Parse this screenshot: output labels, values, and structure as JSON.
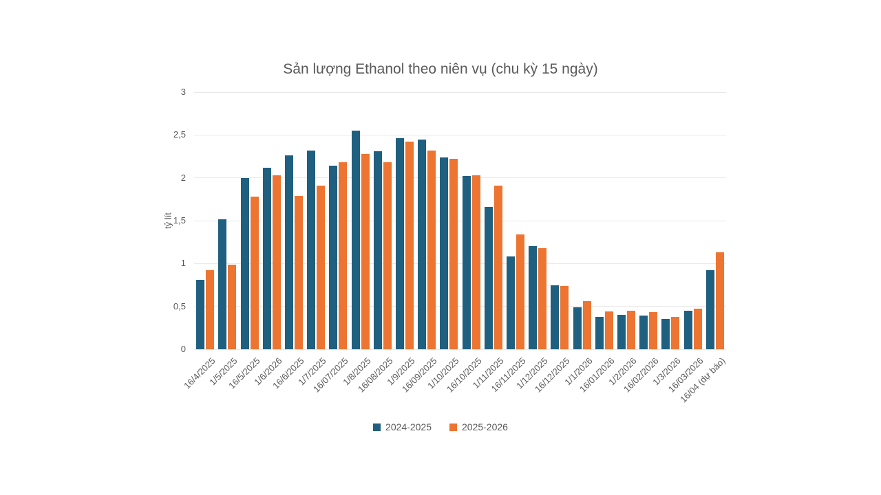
{
  "page": {
    "background": "#ffffff"
  },
  "chart_data": {
    "type": "bar",
    "title": "Sản lượng Ethanol theo niên vụ (chu kỳ 15 ngày)",
    "xlabel": "",
    "ylabel": "tỷ lít",
    "ylim": [
      0,
      3
    ],
    "grid": true,
    "legend_position": "bottom",
    "gridline_color": "#e8e8e8",
    "text_color": "#595959",
    "yticks": [
      {
        "value": 0,
        "label": "0"
      },
      {
        "value": 0.5,
        "label": "0,5"
      },
      {
        "value": 1,
        "label": "1"
      },
      {
        "value": 1.5,
        "label": "1,5"
      },
      {
        "value": 2,
        "label": "2"
      },
      {
        "value": 2.5,
        "label": "2,5"
      },
      {
        "value": 3,
        "label": "3"
      }
    ],
    "categories": [
      "16/4/2025",
      "1/5/2025",
      "16/5/2025",
      "1/6/2026",
      "16/6/2025",
      "1/7/2025",
      "16/07/2025",
      "1/8/2025",
      "16/08/2025",
      "1/9/2025",
      "16/09/2025",
      "1/10/2025",
      "16/10/2025",
      "1/11/2025",
      "16/11/2025",
      "1/12/2025",
      "16/12/2025",
      "1/1/2026",
      "16/01/2026",
      "1/2/2026",
      "16/02/2026",
      "1/3/2026",
      "16/03/2026",
      "16/04 (dự báo)"
    ],
    "series": [
      {
        "name": "2024-2025",
        "color": "#1f5f7f",
        "values": [
          0.81,
          1.52,
          2.0,
          2.12,
          2.26,
          2.32,
          2.14,
          2.55,
          2.31,
          2.46,
          2.45,
          2.24,
          2.02,
          1.66,
          1.08,
          1.2,
          0.75,
          0.49,
          0.38,
          0.4,
          0.39,
          0.35,
          0.45,
          0.92
        ]
      },
      {
        "name": "2025-2026",
        "color": "#ed7431",
        "values": [
          0.92,
          0.99,
          1.78,
          2.03,
          1.79,
          1.91,
          2.18,
          2.28,
          2.18,
          2.42,
          2.32,
          2.22,
          2.03,
          1.91,
          1.34,
          1.18,
          0.74,
          0.56,
          0.44,
          0.45,
          0.43,
          0.38,
          0.47,
          1.13
        ]
      }
    ]
  }
}
